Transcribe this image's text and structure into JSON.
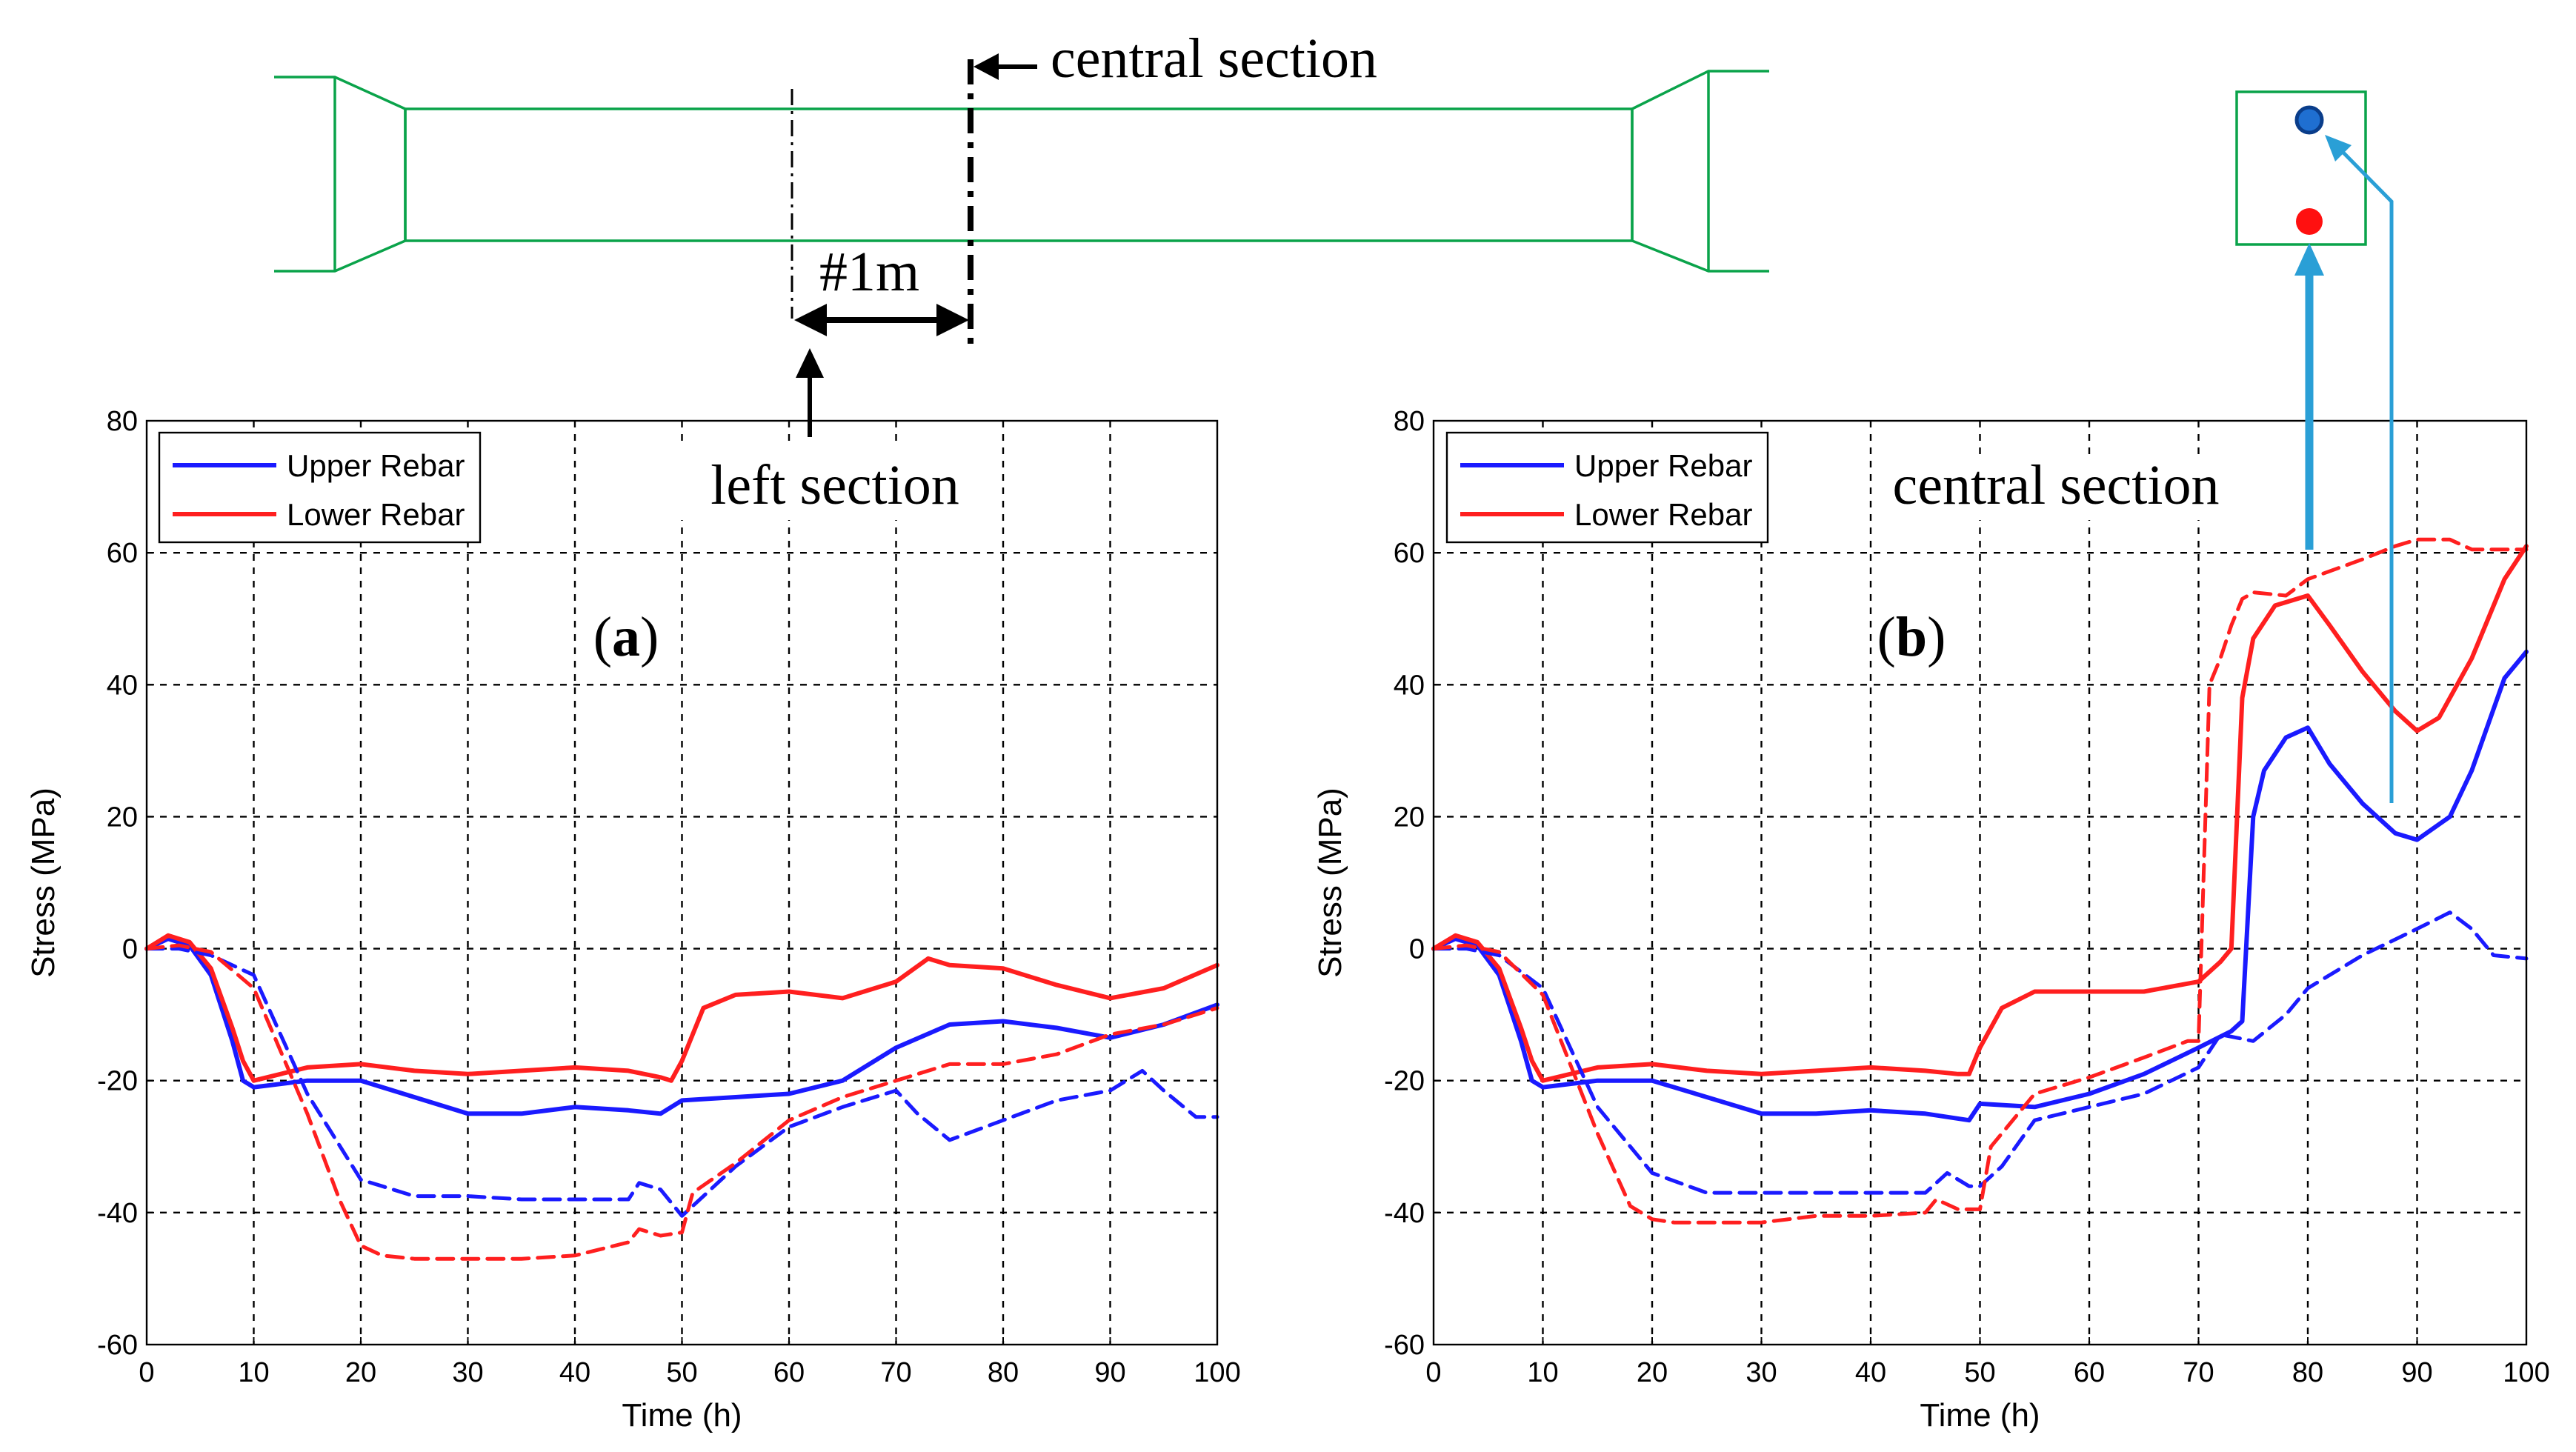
{
  "colors": {
    "upper": "#1a1aff",
    "lower": "#ff1f1f",
    "beam": "#0aa34a",
    "arrow": "#2a9fd6"
  },
  "diagram": {
    "central_label": "central section",
    "spacing_label": "#1m",
    "left_label": "left section"
  },
  "chart_data": [
    {
      "type": "line",
      "panel_label": "a",
      "title": "left section",
      "xlabel": "Time (h)",
      "ylabel": "Stress (MPa)",
      "xlim": [
        0,
        100
      ],
      "ylim": [
        -60,
        80
      ],
      "xticks": [
        0,
        10,
        20,
        30,
        40,
        50,
        60,
        70,
        80,
        90,
        100
      ],
      "yticks": [
        -60,
        -40,
        -20,
        0,
        20,
        40,
        60,
        80
      ],
      "grid": true,
      "legend": {
        "placement": "top-left",
        "entries": [
          "Upper Rebar",
          "Lower Rebar"
        ]
      },
      "series": [
        {
          "name": "Upper Rebar",
          "color": "upper",
          "dash": false,
          "x": [
            0,
            2,
            4,
            6,
            8,
            9,
            10,
            15,
            20,
            25,
            30,
            35,
            40,
            45,
            48,
            50,
            55,
            60,
            65,
            70,
            75,
            80,
            85,
            90,
            95,
            100
          ],
          "y": [
            0,
            1.5,
            0.5,
            -4,
            -14,
            -20,
            -21,
            -20,
            -20,
            -22.5,
            -25,
            -25,
            -24,
            -24.5,
            -25,
            -23,
            -22.5,
            -22,
            -20,
            -15,
            -11.5,
            -11,
            -12,
            -13.5,
            -11.5,
            -8.5
          ]
        },
        {
          "name": "Lower Rebar",
          "color": "lower",
          "dash": false,
          "x": [
            0,
            2,
            4,
            6,
            8,
            9,
            10,
            15,
            20,
            25,
            30,
            35,
            40,
            45,
            48,
            49,
            50,
            52,
            55,
            60,
            65,
            70,
            73,
            75,
            80,
            85,
            90,
            95,
            100
          ],
          "y": [
            0,
            2,
            1,
            -3,
            -12,
            -17,
            -20,
            -18,
            -17.5,
            -18.5,
            -19,
            -18.5,
            -18,
            -18.5,
            -19.5,
            -20,
            -17,
            -9,
            -7,
            -6.5,
            -7.5,
            -5,
            -1.5,
            -2.5,
            -3,
            -5.5,
            -7.5,
            -6,
            -2.5
          ]
        },
        {
          "name": "Upper Rebar",
          "color": "upper",
          "dash": true,
          "x": [
            0,
            3,
            6,
            10,
            15,
            20,
            25,
            30,
            35,
            40,
            45,
            46,
            48,
            50,
            51,
            55,
            60,
            65,
            70,
            72,
            75,
            80,
            85,
            90,
            93,
            95,
            98,
            100
          ],
          "y": [
            0,
            0,
            -1,
            -4,
            -22,
            -35,
            -37.5,
            -37.5,
            -38,
            -38,
            -38,
            -35.5,
            -36.5,
            -40.5,
            -39,
            -33,
            -27,
            -24,
            -21.5,
            -25,
            -29,
            -26,
            -23,
            -21.5,
            -18.5,
            -21.5,
            -25.5,
            -25.5
          ]
        },
        {
          "name": "Lower Rebar",
          "color": "lower",
          "dash": true,
          "x": [
            0,
            3,
            6,
            10,
            15,
            18,
            20,
            22,
            25,
            30,
            35,
            40,
            45,
            46,
            48,
            50,
            51,
            55,
            60,
            65,
            70,
            75,
            80,
            85,
            90,
            95,
            100
          ],
          "y": [
            0,
            0.5,
            -0.5,
            -6,
            -25,
            -38,
            -45,
            -46.5,
            -47,
            -47,
            -47,
            -46.5,
            -44.5,
            -42.5,
            -43.5,
            -43,
            -37,
            -32.5,
            -26,
            -22.5,
            -20,
            -17.5,
            -17.5,
            -16,
            -13,
            -11.5,
            -9
          ]
        }
      ]
    },
    {
      "type": "line",
      "panel_label": "b",
      "title": "central section",
      "xlabel": "Time (h)",
      "ylabel": "Stress (MPa)",
      "xlim": [
        0,
        100
      ],
      "ylim": [
        -60,
        80
      ],
      "xticks": [
        0,
        10,
        20,
        30,
        40,
        50,
        60,
        70,
        80,
        90,
        100
      ],
      "yticks": [
        -60,
        -40,
        -20,
        0,
        20,
        40,
        60,
        80
      ],
      "grid": true,
      "legend": {
        "placement": "top-left",
        "entries": [
          "Upper Rebar",
          "Lower Rebar"
        ]
      },
      "series": [
        {
          "name": "Upper Rebar",
          "color": "upper",
          "dash": false,
          "x": [
            0,
            2,
            4,
            6,
            8,
            9,
            10,
            15,
            20,
            25,
            30,
            35,
            40,
            45,
            49,
            50,
            55,
            60,
            65,
            70,
            73,
            74,
            75,
            76,
            78,
            80,
            82,
            85,
            88,
            90,
            93,
            95,
            98,
            100
          ],
          "y": [
            0,
            1.5,
            0.5,
            -4,
            -14,
            -20,
            -21,
            -20,
            -20,
            -22.5,
            -25,
            -25,
            -24.5,
            -25,
            -26,
            -23.5,
            -24,
            -22,
            -19,
            -15,
            -12.5,
            -11,
            20,
            27,
            32,
            33.5,
            28,
            22,
            17.5,
            16.5,
            20,
            27,
            41,
            45
          ]
        },
        {
          "name": "Lower Rebar",
          "color": "lower",
          "dash": false,
          "x": [
            0,
            2,
            4,
            6,
            8,
            9,
            10,
            15,
            20,
            25,
            30,
            35,
            40,
            45,
            48,
            49,
            50,
            52,
            55,
            60,
            65,
            70,
            72,
            73,
            74,
            75,
            77,
            80,
            82,
            85,
            88,
            90,
            92,
            95,
            98,
            100
          ],
          "y": [
            0,
            2,
            1,
            -3,
            -12,
            -17,
            -20,
            -18,
            -17.5,
            -18.5,
            -19,
            -18.5,
            -18,
            -18.5,
            -19,
            -19,
            -15,
            -9,
            -6.5,
            -6.5,
            -6.5,
            -5,
            -2,
            0,
            38,
            47,
            52,
            53.5,
            49,
            42,
            36,
            33,
            35,
            44,
            56,
            61
          ]
        },
        {
          "name": "Upper Rebar",
          "color": "upper",
          "dash": true,
          "x": [
            0,
            3,
            6,
            10,
            15,
            20,
            25,
            30,
            35,
            40,
            45,
            47,
            49,
            50,
            52,
            55,
            60,
            65,
            70,
            72,
            75,
            78,
            80,
            85,
            90,
            93,
            95,
            97,
            100
          ],
          "y": [
            0,
            0,
            -1,
            -6,
            -24,
            -34,
            -37,
            -37,
            -37,
            -37,
            -37,
            -34,
            -36,
            -36,
            -33,
            -26,
            -24,
            -22,
            -18,
            -13,
            -14,
            -10,
            -6,
            -1,
            3,
            5.5,
            3,
            -1,
            -1.5
          ]
        },
        {
          "name": "Lower Rebar",
          "color": "lower",
          "dash": true,
          "x": [
            0,
            3,
            6,
            10,
            15,
            18,
            20,
            22,
            25,
            30,
            35,
            40,
            45,
            46,
            48,
            50,
            51,
            55,
            60,
            65,
            69,
            70,
            71,
            72,
            73,
            74,
            75,
            78,
            80,
            85,
            88,
            90,
            93,
            95,
            100
          ],
          "y": [
            0,
            0.5,
            -0.5,
            -7,
            -28,
            -39,
            -41,
            -41.5,
            -41.5,
            -41.5,
            -40.5,
            -40.5,
            -40,
            -38,
            -39.5,
            -39.5,
            -30,
            -22,
            -19.5,
            -16.5,
            -14,
            -14,
            40,
            44,
            49,
            53,
            54,
            53.5,
            56,
            59,
            61,
            62,
            62,
            60.5,
            60.5
          ]
        }
      ]
    }
  ]
}
